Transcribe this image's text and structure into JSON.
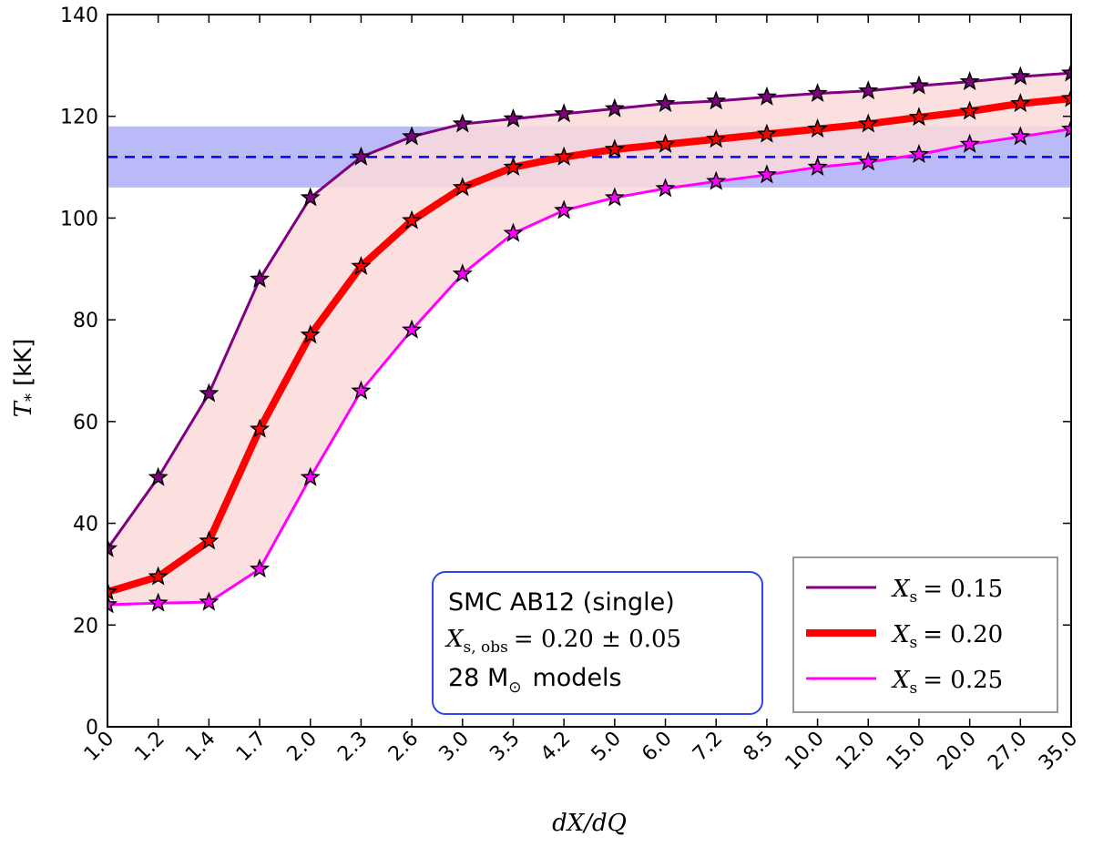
{
  "chart_data": {
    "type": "line",
    "xlabel": "dX/dQ",
    "ylabel_symbol": "T",
    "ylabel_sub": "*",
    "ylabel_unit": "[kK]",
    "x_tick_labels": [
      "1.0",
      "1.2",
      "1.4",
      "1.7",
      "2.0",
      "2.3",
      "2.6",
      "3.0",
      "3.5",
      "4.2",
      "5.0",
      "6.0",
      "7.2",
      "8.5",
      "10.0",
      "12.0",
      "15.0",
      "20.0",
      "27.0",
      "35.0"
    ],
    "ylim": [
      0,
      140
    ],
    "y_ticks": [
      0,
      20,
      40,
      60,
      80,
      100,
      120,
      140
    ],
    "series": [
      {
        "name": "X_s = 0.15",
        "legend_label": "X",
        "legend_sub": "s",
        "legend_value": "= 0.15",
        "color": "#800080",
        "values": [
          35.0,
          49.0,
          65.5,
          88.0,
          104.0,
          112.0,
          116.0,
          118.5,
          119.5,
          120.5,
          121.5,
          122.5,
          123.0,
          123.8,
          124.5,
          125.0,
          126.0,
          126.8,
          127.8,
          128.5
        ]
      },
      {
        "name": "X_s = 0.20",
        "legend_label": "X",
        "legend_sub": "s",
        "legend_value": "= 0.20",
        "color": "#ff0000",
        "values": [
          26.5,
          29.5,
          36.5,
          58.5,
          77.0,
          90.5,
          99.5,
          106.0,
          110.0,
          112.0,
          113.5,
          114.5,
          115.5,
          116.5,
          117.5,
          118.5,
          119.8,
          121.0,
          122.5,
          123.5
        ]
      },
      {
        "name": "X_s = 0.25",
        "legend_label": "X",
        "legend_sub": "s",
        "legend_value": "= 0.25",
        "color": "#ff00ff",
        "values": [
          24.0,
          24.3,
          24.5,
          31.0,
          49.0,
          66.0,
          78.0,
          89.0,
          97.0,
          101.5,
          104.0,
          105.8,
          107.2,
          108.5,
          110.0,
          111.0,
          112.5,
          114.5,
          116.0,
          117.5
        ]
      }
    ],
    "observed_band": {
      "center": 112,
      "low": 106,
      "high": 118,
      "line_color": "#0000ff",
      "band_color": "#8c8cf5"
    },
    "fill_between_color": "#fcdada",
    "annotation": {
      "title": "SMC AB12 (single)",
      "math_symbol": "X",
      "math_sub": "s, obs",
      "math_rest": "= 0.20 ± 0.05",
      "models": "28 M",
      "models_sun": "⊙",
      "models_suffix": "models"
    },
    "legend_position": "lower-right"
  }
}
